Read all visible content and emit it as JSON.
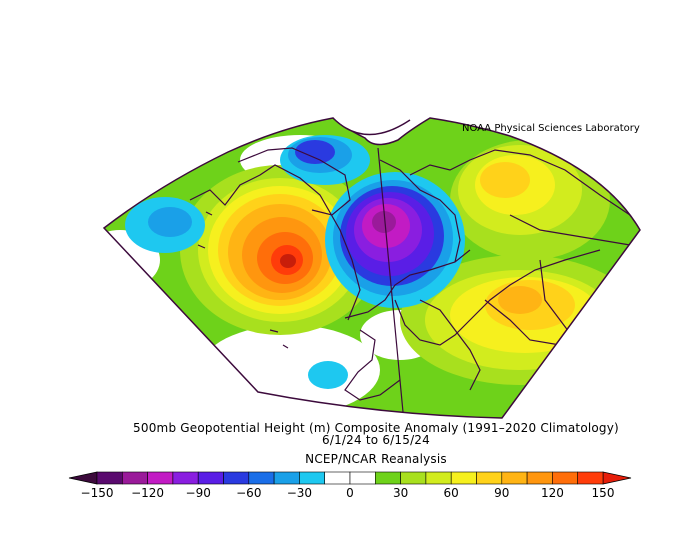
{
  "credit": "NOAA Physical Sciences Laboratory",
  "caption": {
    "line1": "500mb Geopotential Height (m) Composite Anomaly (1991–2020 Climatology)",
    "line2": "6/1/24   to 6/15/24",
    "line3": "NCEP/NCAR Reanalysis"
  },
  "colorbar": {
    "labels": [
      "−150",
      "−120",
      "−90",
      "−60",
      "−30",
      "0",
      "30",
      "60",
      "90",
      "120",
      "150"
    ],
    "colors": [
      "#5a0a6e",
      "#9a1a9a",
      "#c21bc4",
      "#8a1ee0",
      "#5a1ee6",
      "#2a3ae0",
      "#1a6ee8",
      "#1aa0e8",
      "#1ec8f0",
      "#ffffff",
      "#ffffff",
      "#6ed21a",
      "#a8e01e",
      "#d2ec1e",
      "#f6f01e",
      "#ffd21a",
      "#ffb414",
      "#ff960f",
      "#ff6e0a",
      "#ff3c0a"
    ]
  },
  "map": {
    "projection": "polar-sector",
    "region": "North Atlantic / Europe",
    "anomaly_centers": [
      {
        "name": "negative-center",
        "location": "North Sea / Scandinavia",
        "value": -150
      },
      {
        "name": "positive-center",
        "location": "Southern Greenland / Labrador Sea",
        "value": 150
      },
      {
        "name": "negative-secondary",
        "location": "Greenland / Arctic",
        "value": -60
      }
    ]
  }
}
